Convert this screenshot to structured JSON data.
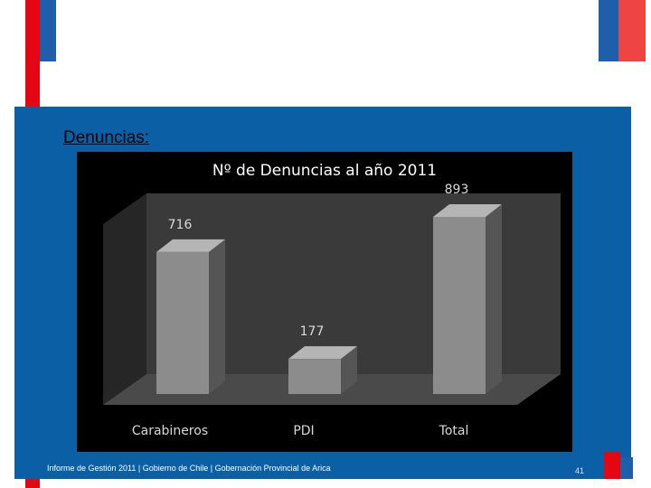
{
  "slide": {
    "section_heading": "Denuncias:",
    "footer": "Informe de Gestión 2011 | Gobierno de Chile | Gobernación Provincial de Arica",
    "page_number": "41",
    "colors": {
      "panel": "#0b5fa5",
      "brand_red": "#e30613",
      "brand_blue": "#1f5ea8"
    }
  },
  "chart_data": {
    "type": "bar",
    "title": "Nº de Denuncias al año 2011",
    "categories": [
      "Carabineros",
      "PDI",
      "Total"
    ],
    "values": [
      716,
      177,
      893
    ],
    "ylim": [
      0,
      893
    ],
    "grid": false,
    "legend": "none",
    "style": "3d",
    "colors": {
      "background": "#000000",
      "bar": "#8c8c8c",
      "wall": "#3a3a3a",
      "text": "#d9d9d9",
      "title": "#ffffff"
    }
  }
}
